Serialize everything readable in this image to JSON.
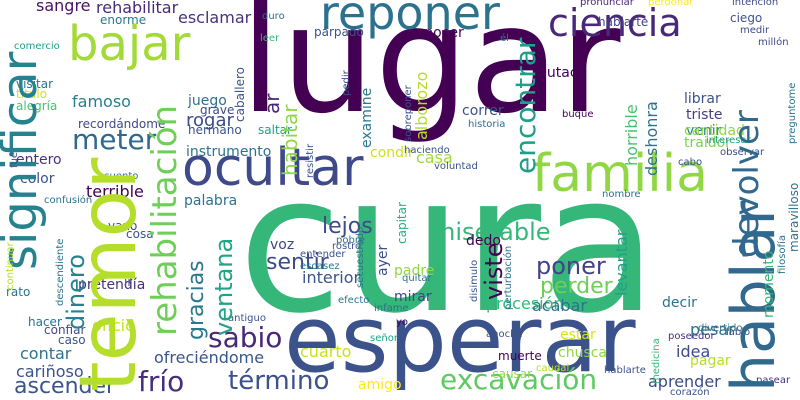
{
  "words": [
    {
      "text": "lugar",
      "color": "#440154"
    },
    {
      "text": "cura",
      "color": "#35b779"
    },
    {
      "text": "esperar",
      "color": "#3b528b"
    },
    {
      "text": "temor",
      "color": "#b5de2b"
    },
    {
      "text": "hablar",
      "color": "#31688e"
    },
    {
      "text": "significar",
      "color": "#26828e"
    },
    {
      "text": "familia",
      "color": "#90d743"
    },
    {
      "text": "ocultar",
      "color": "#3e4a89"
    },
    {
      "text": "reponer",
      "color": "#2c728e"
    },
    {
      "text": "bajar",
      "color": "#a2da37"
    },
    {
      "text": "ciencia",
      "color": "#482878"
    },
    {
      "text": "devolver",
      "color": "#31688e"
    },
    {
      "text": "rehabilitación",
      "color": "#6ece58"
    },
    {
      "text": "encontrar",
      "color": "#1f9e89"
    },
    {
      "text": "excavación",
      "color": "#5ec962"
    },
    {
      "text": "término",
      "color": "#3b528b"
    },
    {
      "text": "frío",
      "color": "#472d7b"
    },
    {
      "text": "miserable",
      "color": "#35b779"
    },
    {
      "text": "sabio",
      "color": "#482878"
    },
    {
      "text": "meter",
      "color": "#31688e"
    },
    {
      "text": "dinero",
      "color": "#26828e"
    },
    {
      "text": "ventana",
      "color": "#20a486"
    },
    {
      "text": "gracias",
      "color": "#2a788e"
    },
    {
      "text": "sentir",
      "color": "#3e4a89"
    },
    {
      "text": "poner",
      "color": "#414487"
    },
    {
      "text": "viste",
      "color": "#440154"
    },
    {
      "text": "lejos",
      "color": "#3e4a89"
    },
    {
      "text": "ascender",
      "color": "#39568c"
    },
    {
      "text": "perder",
      "color": "#6ece58"
    },
    {
      "text": "rehabilitar",
      "color": "#482878"
    },
    {
      "text": "sangre",
      "color": "#471164"
    },
    {
      "text": "enorme",
      "color": "#2a788e"
    },
    {
      "text": "esclamar",
      "color": "#46327e"
    },
    {
      "text": "famoso",
      "color": "#287d8e"
    },
    {
      "text": "juego",
      "color": "#2d708e"
    },
    {
      "text": "rogar",
      "color": "#3e4a89"
    },
    {
      "text": "instrumento",
      "color": "#2c728e"
    },
    {
      "text": "terrible",
      "color": "#440154"
    },
    {
      "text": "butaca",
      "color": "#440154"
    },
    {
      "text": "librar",
      "color": "#3b528b"
    },
    {
      "text": "triste",
      "color": "#433e85"
    },
    {
      "text": "venir",
      "color": "#26828e"
    },
    {
      "text": "traidor",
      "color": "#7ad151"
    },
    {
      "text": "cantidad",
      "color": "#8fd744"
    },
    {
      "text": "horrible",
      "color": "#4ac16d"
    },
    {
      "text": "deshonra",
      "color": "#2c728e"
    },
    {
      "text": "conocer",
      "color": "#440154"
    },
    {
      "text": "habitar",
      "color": "#8fd744"
    },
    {
      "text": "ar",
      "color": "#482878"
    },
    {
      "text": "examine",
      "color": "#2a788e"
    },
    {
      "text": "alborozo",
      "color": "#b5de2b"
    },
    {
      "text": "correr",
      "color": "#3b528b"
    },
    {
      "text": "casa",
      "color": "#a0da39"
    },
    {
      "text": "procesión",
      "color": "#35b779"
    },
    {
      "text": "acabar",
      "color": "#2c728e"
    },
    {
      "text": "padre",
      "color": "#8fd744"
    },
    {
      "text": "mirar",
      "color": "#414487"
    },
    {
      "text": "interior",
      "color": "#3b528b"
    },
    {
      "text": "voz",
      "color": "#414487"
    },
    {
      "text": "cuarto",
      "color": "#c8e020"
    },
    {
      "text": "amigo",
      "color": "#fde725"
    },
    {
      "text": "ofreciéndome",
      "color": "#39568c"
    },
    {
      "text": "idea",
      "color": "#3e4a89"
    },
    {
      "text": "pagar",
      "color": "#b5de2b"
    },
    {
      "text": "pesar",
      "color": "#2c728e"
    },
    {
      "text": "aprender",
      "color": "#3e4a89"
    },
    {
      "text": "levantar",
      "color": "#1fa187"
    },
    {
      "text": "decir",
      "color": "#2c728e"
    },
    {
      "text": "oficio",
      "color": "#c2df23"
    },
    {
      "text": "contar",
      "color": "#2c728e"
    },
    {
      "text": "cariñoso",
      "color": "#3b528b"
    },
    {
      "text": "palabra",
      "color": "#2c728e"
    },
    {
      "text": "pretendía",
      "color": "#46327e"
    },
    {
      "text": "condir",
      "color": "#d0e11c"
    },
    {
      "text": "capitar",
      "color": "#28ae80"
    },
    {
      "text": "ayer",
      "color": "#3b528b"
    },
    {
      "text": "dedo",
      "color": "#440154"
    },
    {
      "text": "chusca",
      "color": "#8fd744"
    },
    {
      "text": "muerte",
      "color": "#440154"
    },
    {
      "text": "estar",
      "color": "#d8e219"
    },
    {
      "text": "causar",
      "color": "#8fd744"
    },
    {
      "text": "entero",
      "color": "#46327e"
    },
    {
      "text": "color",
      "color": "#3b528b"
    },
    {
      "text": "alegría",
      "color": "#4ac16d"
    },
    {
      "text": "visitar",
      "color": "#2c728e"
    },
    {
      "text": "título",
      "color": "#d8e219"
    },
    {
      "text": "comercio",
      "color": "#1fa187"
    },
    {
      "text": "grave",
      "color": "#3e4a89"
    },
    {
      "text": "caballero",
      "color": "#3b528b"
    },
    {
      "text": "hermano",
      "color": "#3b528b"
    },
    {
      "text": "saltar",
      "color": "#1f9e89"
    },
    {
      "text": "párpado",
      "color": "#3b528b"
    },
    {
      "text": "leer",
      "color": "#35b779"
    },
    {
      "text": "duro",
      "color": "#2c728e"
    },
    {
      "text": "él",
      "color": "#2c728e"
    },
    {
      "text": "pronunciar",
      "color": "#482878"
    },
    {
      "text": "hablarte",
      "color": "#414487"
    },
    {
      "text": "perdonar",
      "color": "#fde725"
    },
    {
      "text": "intención",
      "color": "#3e4a89"
    },
    {
      "text": "ciego",
      "color": "#3b528b"
    },
    {
      "text": "medir",
      "color": "#3e4a89"
    },
    {
      "text": "millón",
      "color": "#3e4a89"
    },
    {
      "text": "buque",
      "color": "#440154"
    },
    {
      "text": "historia",
      "color": "#2c728e"
    },
    {
      "text": "haciendo",
      "color": "#3b528b"
    },
    {
      "text": "cabo",
      "color": "#3b528b"
    },
    {
      "text": "interesar",
      "color": "#1f9e89"
    },
    {
      "text": "observar",
      "color": "#3e4a89"
    },
    {
      "text": "preguntome",
      "color": "#2c728e"
    },
    {
      "text": "momento",
      "color": "#35b779"
    },
    {
      "text": "maravilloso",
      "color": "#2c728e"
    },
    {
      "text": "filosofía",
      "color": "#2c728e"
    },
    {
      "text": "divertido",
      "color": "#2c728e"
    },
    {
      "text": "labio",
      "color": "#3b528b"
    },
    {
      "text": "poseedor",
      "color": "#46327e"
    },
    {
      "text": "pasear",
      "color": "#46327e"
    },
    {
      "text": "corazón",
      "color": "#3b528b"
    },
    {
      "text": "hablarte",
      "color": "#3b528b"
    },
    {
      "text": "medicina",
      "color": "#35b779"
    },
    {
      "text": "caudal",
      "color": "#b5de2b"
    },
    {
      "text": "anoche",
      "color": "#3b528b"
    },
    {
      "text": "efecto",
      "color": "#2c728e"
    },
    {
      "text": "infame",
      "color": "#2c728e"
    },
    {
      "text": "señor",
      "color": "#1fa187"
    },
    {
      "text": "yo",
      "color": "#440154"
    },
    {
      "text": "antiguo",
      "color": "#3b528b"
    },
    {
      "text": "rostro",
      "color": "#3b528b"
    },
    {
      "text": "pobre",
      "color": "#2c728e"
    },
    {
      "text": "nombre",
      "color": "#2c728e"
    },
    {
      "text": "voluntad",
      "color": "#3b528b"
    },
    {
      "text": "cuento",
      "color": "#2c728e"
    },
    {
      "text": "confusión",
      "color": "#2c728e"
    },
    {
      "text": "vano",
      "color": "#3e4a89"
    },
    {
      "text": "cosa",
      "color": "#3b528b"
    },
    {
      "text": "ir",
      "color": "#3b528b"
    },
    {
      "text": "hacer",
      "color": "#2c728e"
    },
    {
      "text": "confiar",
      "color": "#3e4a89"
    },
    {
      "text": "caso",
      "color": "#3b528b"
    },
    {
      "text": "rato",
      "color": "#2c728e"
    },
    {
      "text": "continuar",
      "color": "#b5de2b"
    },
    {
      "text": "recordándome",
      "color": "#3e4a89"
    },
    {
      "text": "fué",
      "color": "#3e4a89"
    },
    {
      "text": "pedir",
      "color": "#3e4a89"
    },
    {
      "text": "sobreponer",
      "color": "#3b528b"
    },
    {
      "text": "resistir",
      "color": "#3b528b"
    },
    {
      "text": "secuestrado",
      "color": "#2c728e"
    },
    {
      "text": "descendiente",
      "color": "#2c728e"
    },
    {
      "text": "disimulo",
      "color": "#3b528b"
    },
    {
      "text": "perturbación",
      "color": "#2c728e"
    },
    {
      "text": "entender",
      "color": "#3b528b"
    },
    {
      "text": "quitar",
      "color": "#2c728e"
    },
    {
      "text": "escasez",
      "color": "#2c728e"
    }
  ]
}
